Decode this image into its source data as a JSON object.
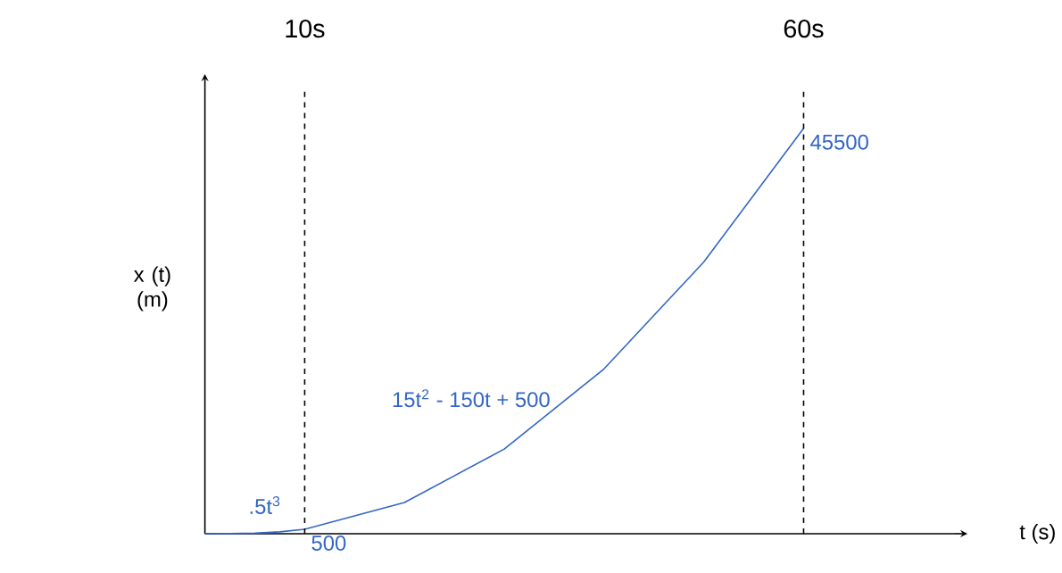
{
  "chart_data": {
    "type": "line",
    "xlabel": "t (s)",
    "ylabel": "x (t) (m)",
    "xlim": [
      0,
      75
    ],
    "ylim": [
      0,
      50000
    ],
    "tick_labels": "x",
    "xticks": [
      {
        "value": 10,
        "label": "10s"
      },
      {
        "value": 60,
        "label": "60s"
      }
    ],
    "x": [
      0,
      2.5,
      5,
      7.5,
      10,
      20,
      30,
      40,
      50,
      60
    ],
    "series": [
      {
        "color": "#3366c4",
        "values": [
          0,
          7.8,
          62.5,
          210.9,
          500,
          3500,
          9500,
          18500,
          30500,
          45500
        ],
        "value_labels": [
          null,
          null,
          null,
          null,
          "500",
          null,
          null,
          null,
          null,
          "45500"
        ]
      }
    ],
    "ref_lines": [
      {
        "axis": "x",
        "value": 10,
        "line_style": "dashed"
      },
      {
        "axis": "x",
        "value": 60,
        "line_style": "dashed"
      }
    ],
    "annotations": [
      ".5t$^{3}$",
      "15t$^{2}$ - 150t + 500"
    ]
  }
}
